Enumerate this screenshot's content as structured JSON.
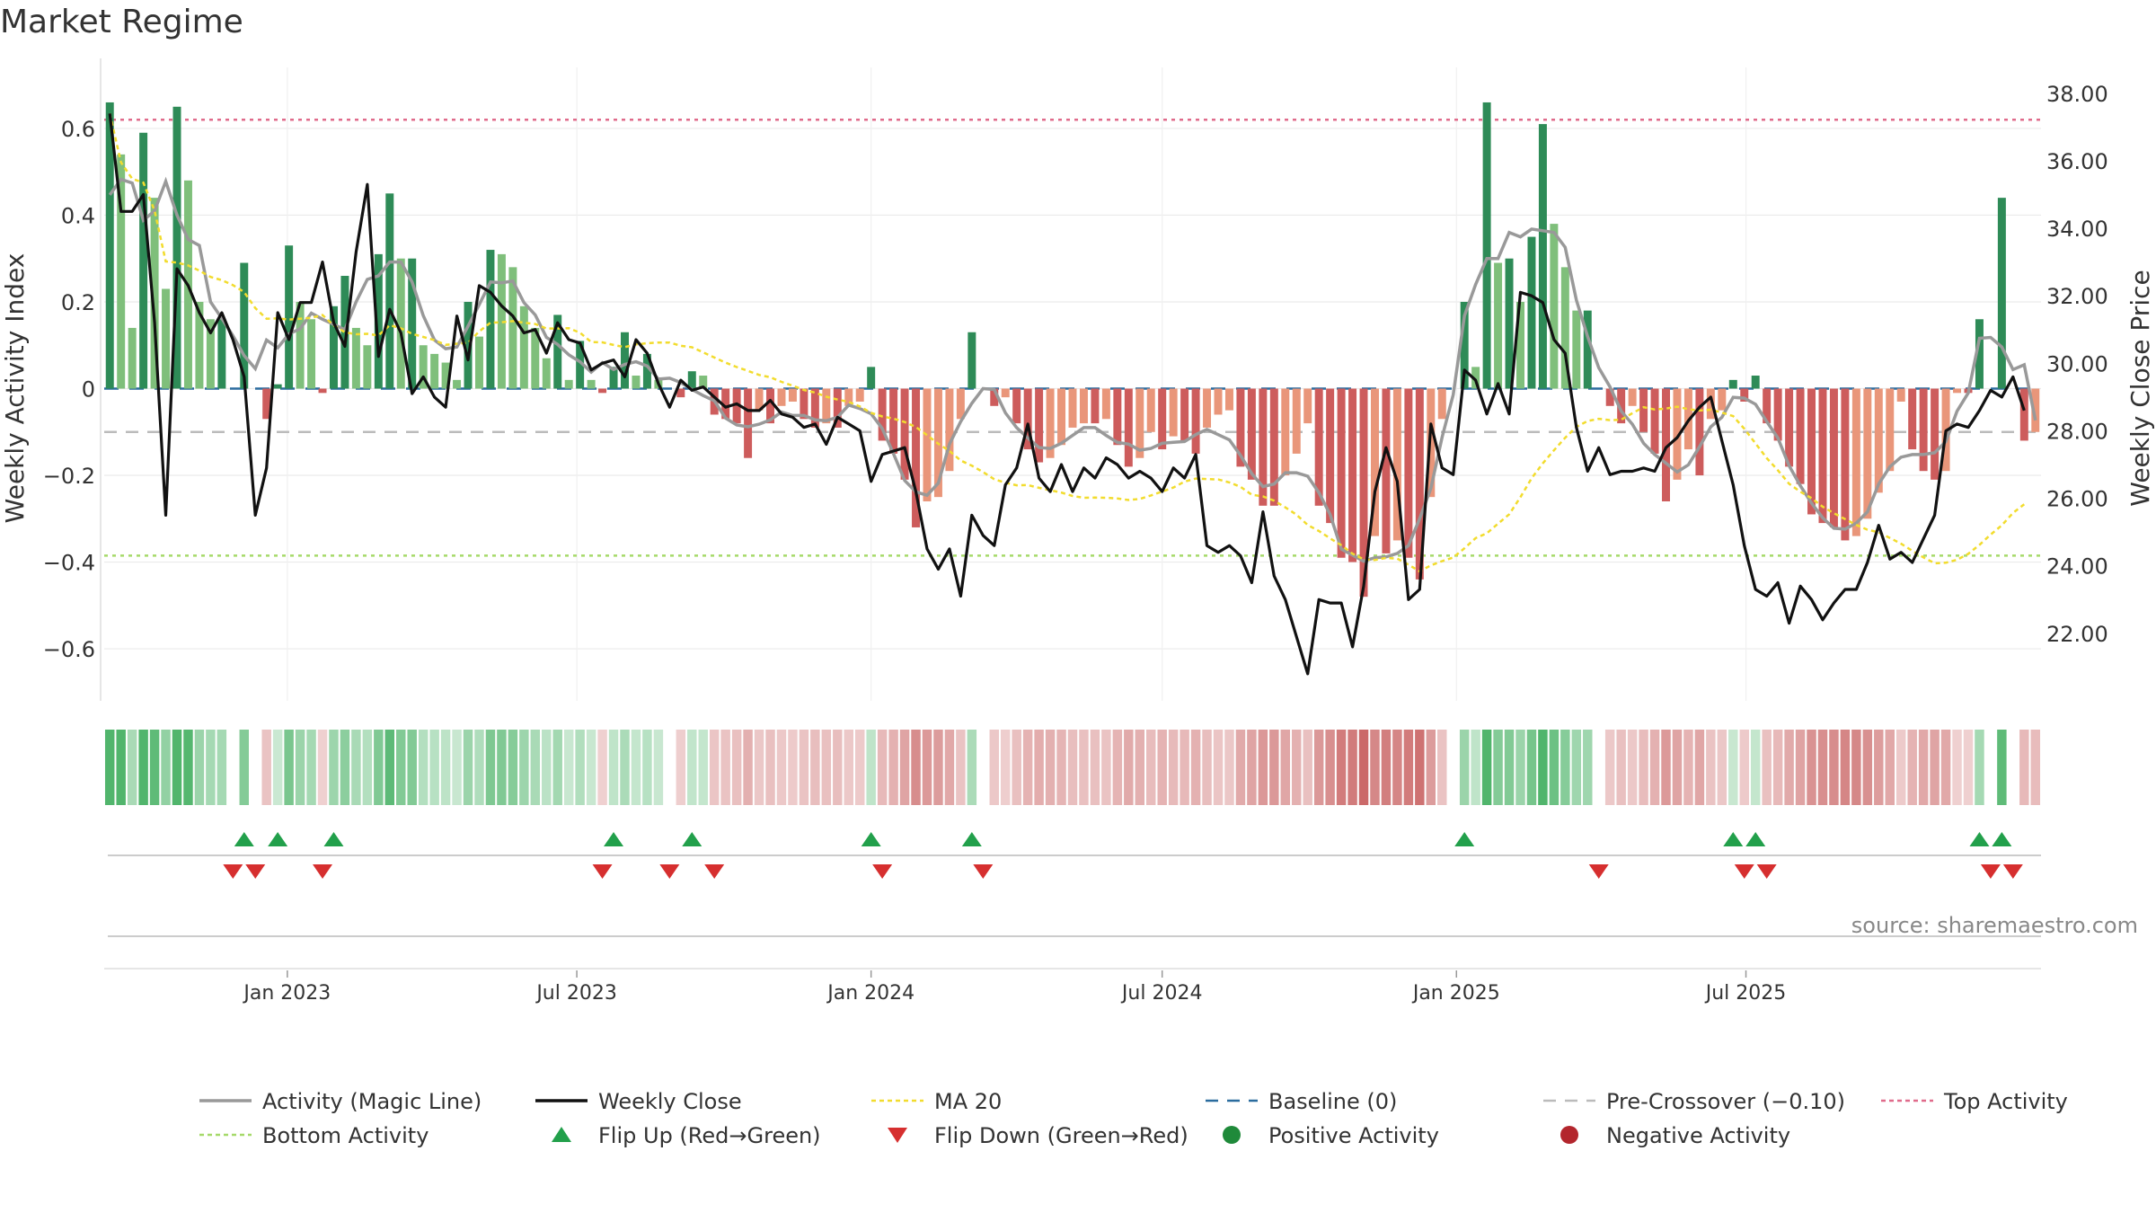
{
  "title": "Market Regime",
  "source_note": "source: sharemaestro.com",
  "chart_data": {
    "type": "bar",
    "subtype": "combo bar + line, dual axis, with regime strip and flip markers",
    "title": "Market Regime",
    "left_axis": {
      "label": "Weekly Activity Index",
      "range": [
        -0.72,
        0.72
      ],
      "ticks": [
        -0.6,
        -0.4,
        -0.2,
        0,
        0.2,
        0.4,
        0.6
      ],
      "tick_labels": [
        "−0.6",
        "−0.4",
        "−0.2",
        "0",
        "0.2",
        "0.4",
        "0.6"
      ]
    },
    "right_axis": {
      "label": "Weekly Close Price",
      "range": [
        20.0,
        38.5
      ],
      "ticks": [
        22,
        24,
        26,
        28,
        30,
        32,
        34,
        36,
        38
      ],
      "tick_labels": [
        "22.00",
        "24.00",
        "26.00",
        "28.00",
        "30.00",
        "32.00",
        "34.00",
        "36.00",
        "38.00"
      ]
    },
    "x_axis": {
      "start": "2022-09-12",
      "end": "2025-09-22",
      "interval": "weekly",
      "tick_labels": [
        "Jan 2023",
        "Jul 2023",
        "Jan 2024",
        "Jul 2024",
        "Jan 2025",
        "Jul 2025"
      ],
      "tick_dates": [
        "2023-01-01",
        "2023-07-01",
        "2024-01-01",
        "2024-07-01",
        "2025-01-01",
        "2025-07-01"
      ]
    },
    "grid": true,
    "reference_lines": {
      "top_activity": 0.62,
      "bottom_activity": -0.385,
      "pre_crossover": -0.1,
      "baseline": 0
    },
    "activity_values": [
      0.66,
      0.54,
      0.14,
      0.59,
      0.44,
      0.23,
      0.65,
      0.48,
      0.2,
      0.16,
      0.16,
      0.0,
      0.29,
      0.0,
      -0.07,
      0.01,
      0.33,
      0.2,
      0.16,
      -0.01,
      0.19,
      0.26,
      0.14,
      0.1,
      0.31,
      0.45,
      0.3,
      0.3,
      0.1,
      0.08,
      0.06,
      0.02,
      0.2,
      0.12,
      0.32,
      0.31,
      0.28,
      0.19,
      0.14,
      0.07,
      0.17,
      0.02,
      0.11,
      0.02,
      -0.01,
      0.05,
      0.13,
      0.03,
      0.08,
      0.02,
      0.0,
      -0.02,
      0.04,
      0.03,
      -0.06,
      -0.07,
      -0.08,
      -0.16,
      -0.05,
      -0.08,
      -0.04,
      -0.03,
      -0.07,
      -0.09,
      -0.08,
      -0.09,
      -0.04,
      -0.03,
      0.05,
      -0.12,
      -0.15,
      -0.21,
      -0.32,
      -0.26,
      -0.25,
      -0.19,
      -0.07,
      0.13,
      0.0,
      -0.04,
      -0.02,
      -0.08,
      -0.14,
      -0.17,
      -0.16,
      -0.13,
      -0.09,
      -0.08,
      -0.08,
      -0.07,
      -0.13,
      -0.18,
      -0.16,
      -0.1,
      -0.14,
      -0.11,
      -0.12,
      -0.15,
      -0.09,
      -0.06,
      -0.05,
      -0.18,
      -0.21,
      -0.27,
      -0.27,
      -0.2,
      -0.15,
      -0.08,
      -0.27,
      -0.31,
      -0.39,
      -0.4,
      -0.48,
      -0.34,
      -0.38,
      -0.35,
      -0.39,
      -0.44,
      -0.25,
      -0.07,
      0.0,
      0.2,
      0.05,
      0.66,
      0.29,
      0.3,
      0.2,
      0.35,
      0.61,
      0.38,
      0.28,
      0.18,
      0.18,
      0.0,
      -0.04,
      -0.08,
      -0.04,
      -0.1,
      -0.15,
      -0.26,
      -0.21,
      -0.14,
      -0.2,
      -0.07,
      -0.05,
      0.02,
      -0.03,
      0.03,
      -0.08,
      -0.12,
      -0.18,
      -0.22,
      -0.29,
      -0.31,
      -0.32,
      -0.35,
      -0.34,
      -0.3,
      -0.24,
      -0.19,
      -0.03,
      -0.14,
      -0.19,
      -0.21,
      -0.19,
      -0.01,
      -0.01,
      0.16,
      0.0,
      0.44,
      0.0,
      -0.12,
      -0.1
    ],
    "weekly_close": [
      37.4,
      34.5,
      34.5,
      35.0,
      31.2,
      25.5,
      32.8,
      32.3,
      31.5,
      30.9,
      31.5,
      30.7,
      29.6,
      25.5,
      26.9,
      31.5,
      30.7,
      31.8,
      31.8,
      33.0,
      31.2,
      30.5,
      33.3,
      35.3,
      30.2,
      31.6,
      30.9,
      29.1,
      29.6,
      29.0,
      28.7,
      31.4,
      30.1,
      32.3,
      32.1,
      31.7,
      31.4,
      30.9,
      31.0,
      30.3,
      31.2,
      30.7,
      30.6,
      29.8,
      30.0,
      30.1,
      29.6,
      30.7,
      30.3,
      29.4,
      28.7,
      29.5,
      29.2,
      29.3,
      29.0,
      28.7,
      28.8,
      28.6,
      28.6,
      28.9,
      28.5,
      28.4,
      28.1,
      28.2,
      27.6,
      28.4,
      28.2,
      28.0,
      26.5,
      27.3,
      27.4,
      27.5,
      26.2,
      24.5,
      23.9,
      24.5,
      23.1,
      25.5,
      24.9,
      24.6,
      26.4,
      26.9,
      28.2,
      26.6,
      26.2,
      27.0,
      26.2,
      26.9,
      26.6,
      27.2,
      27.0,
      26.6,
      26.8,
      26.6,
      26.2,
      26.9,
      26.6,
      27.3,
      24.6,
      24.4,
      24.6,
      24.3,
      23.5,
      25.6,
      23.7,
      23.0,
      21.9,
      20.8,
      23.0,
      22.9,
      22.9,
      21.6,
      23.4,
      26.2,
      27.5,
      26.5,
      23.0,
      23.3,
      28.2,
      26.9,
      26.7,
      29.8,
      29.5,
      28.5,
      29.4,
      28.5,
      32.1,
      32.0,
      31.8,
      30.7,
      30.3,
      28.1,
      26.8,
      27.5,
      26.7,
      26.8,
      26.8,
      26.9,
      26.8,
      27.5,
      27.8,
      28.3,
      28.7,
      29.0,
      27.7,
      26.4,
      24.6,
      23.3,
      23.1,
      23.5,
      22.3,
      23.4,
      23.0,
      22.4,
      22.9,
      23.3,
      23.3,
      24.1,
      25.2,
      24.2,
      24.4,
      24.1,
      24.8,
      25.5,
      28.0,
      28.2,
      28.1,
      28.6,
      29.2,
      29.0,
      29.6,
      28.6
    ]
  },
  "legend": [
    {
      "label": "Activity (Magic Line)",
      "color": "#999999",
      "symbol": "solid-line"
    },
    {
      "label": "Weekly Close",
      "color": "#111111",
      "symbol": "solid-line"
    },
    {
      "label": "MA 20",
      "color": "#f2dc2e",
      "symbol": "dotted-line"
    },
    {
      "label": "Baseline (0)",
      "color": "#2b6c9e",
      "symbol": "dashed-line"
    },
    {
      "label": "Pre-Crossover (−0.10)",
      "color": "#bbbbbb",
      "symbol": "dashed-line"
    },
    {
      "label": "Top Activity",
      "color": "#e06b8b",
      "symbol": "dotted-line"
    },
    {
      "label": "Bottom Activity",
      "color": "#a6d96a",
      "symbol": "dotted-line"
    },
    {
      "label": "Flip Up (Red→Green)",
      "color": "#22a04b",
      "symbol": "triangle-up"
    },
    {
      "label": "Flip Down (Green→Red)",
      "color": "#d62f2f",
      "symbol": "triangle-down"
    },
    {
      "label": "Positive Activity",
      "color": "#1f8a3a",
      "symbol": "circle"
    },
    {
      "label": "Negative Activity",
      "color": "#b3262d",
      "symbol": "circle"
    }
  ],
  "colors": {
    "pos_strong": "#2e8b57",
    "pos_weak": "#7fbf7b",
    "neg_strong": "#cd5c5c",
    "neg_weak": "#e9967a",
    "magic_line": "#999999",
    "close_line": "#111111",
    "ma_line": "#f2dc2e",
    "top_line": "#e06b8b",
    "bottom_line": "#a6d96a",
    "baseline": "#2b6c9e",
    "pre_cross": "#bbbbbb"
  }
}
